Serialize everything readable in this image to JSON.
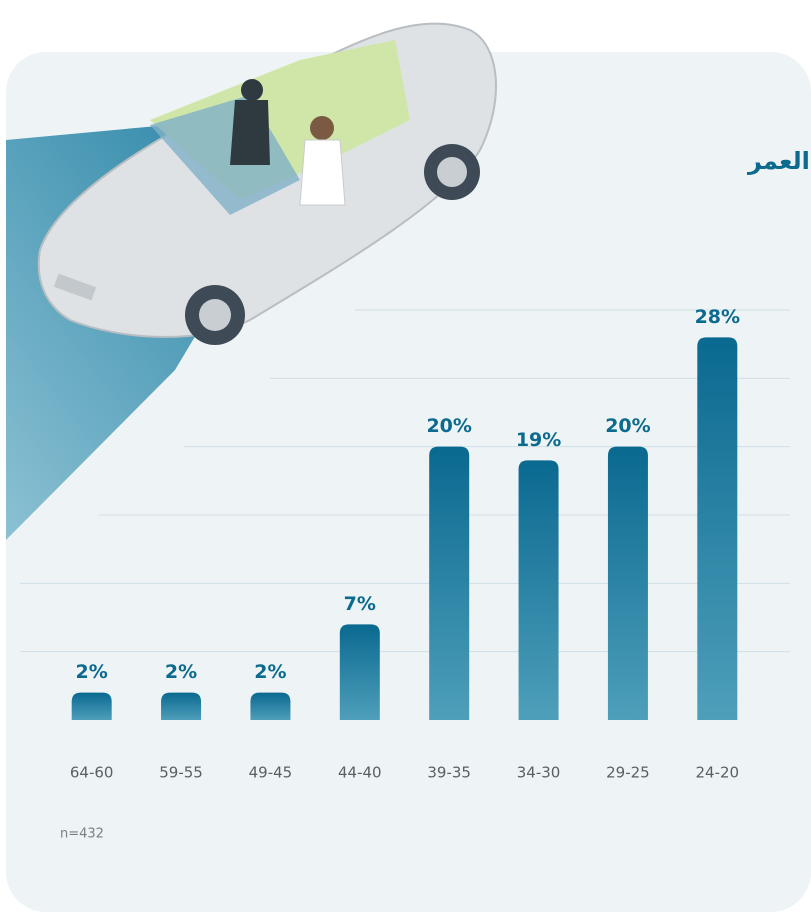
{
  "chart_data": {
    "type": "bar",
    "title": "العمر",
    "note": "n=432",
    "categories": [
      "64-60",
      "59-55",
      "49-45",
      "44-40",
      "39-35",
      "34-30",
      "29-25",
      "24-20"
    ],
    "values": [
      2,
      2,
      2,
      7,
      20,
      19,
      20,
      28
    ],
    "value_labels": [
      "2%",
      "2%",
      "2%",
      "7%",
      "20%",
      "19%",
      "20%",
      "28%"
    ],
    "color": "#0b6a8e",
    "ylim": [
      0,
      30
    ],
    "yticks": [
      5,
      10,
      15,
      20,
      25,
      30
    ],
    "grid": true
  }
}
